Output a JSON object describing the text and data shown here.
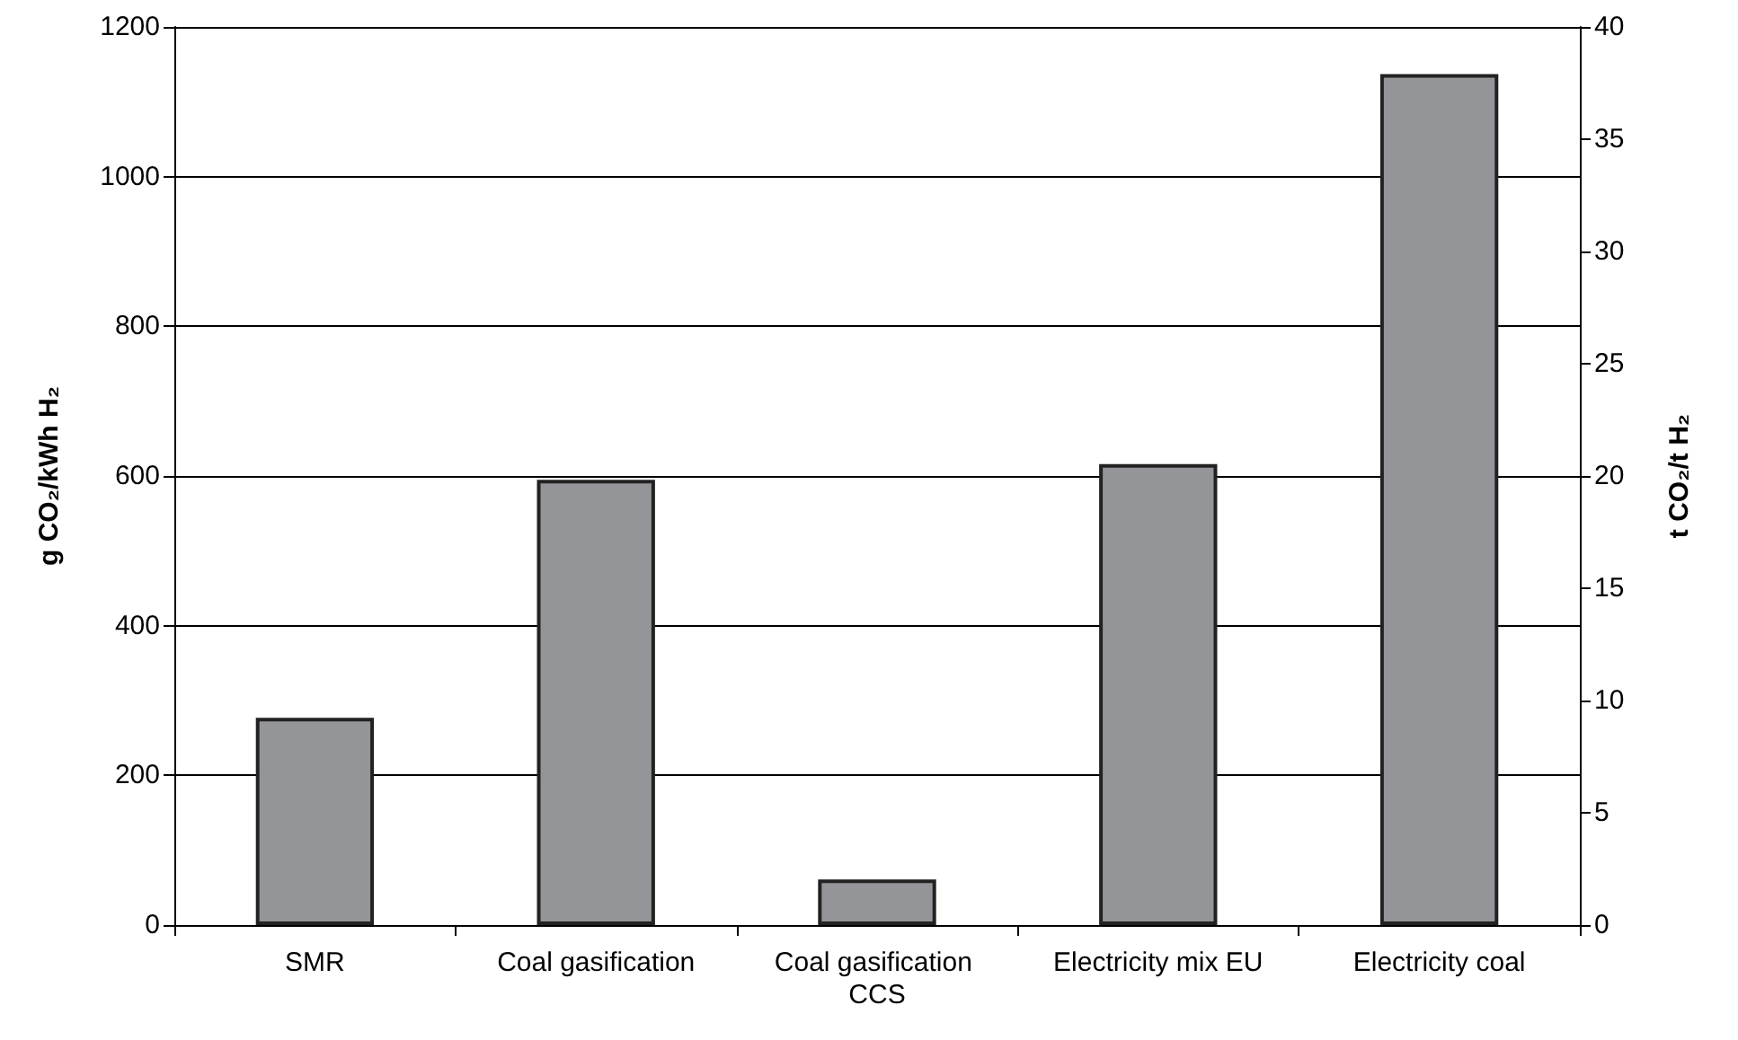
{
  "chart_data": {
    "type": "bar",
    "categories": [
      "SMR",
      "Coal gasification",
      "Coal gasification CCS",
      "Electricity mix EU",
      "Electricity coal"
    ],
    "series": [
      {
        "color": "#939598",
        "values": [
          277,
          595,
          61,
          616,
          1137
        ]
      }
    ],
    "ylabel": "g CO₂/kWh H₂",
    "y2label": "t CO₂/t H₂",
    "ylim": [
      0,
      1200
    ],
    "yticks": [
      0,
      200,
      400,
      600,
      800,
      1000,
      1200
    ],
    "y2lim": [
      0,
      40
    ],
    "y2ticks": [
      0,
      5,
      10,
      15,
      20,
      25,
      30,
      35,
      40
    ],
    "grid": "y"
  }
}
